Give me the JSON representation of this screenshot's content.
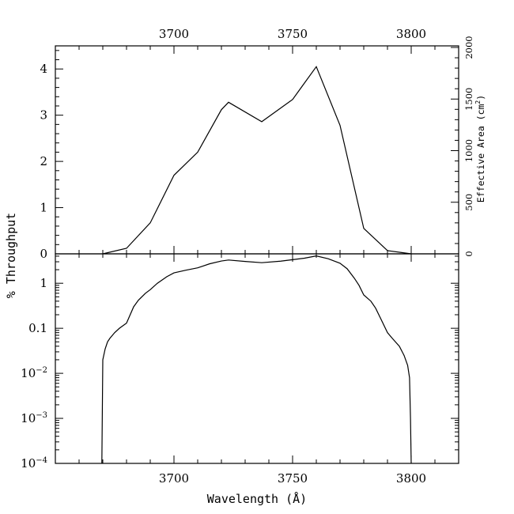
{
  "chart_data": [
    {
      "panel": "top",
      "type": "line",
      "ylabel": "% Throughput",
      "xlim": [
        3650,
        3820
      ],
      "ylim": [
        0,
        4.5
      ],
      "yticks": [
        0,
        1,
        2,
        3,
        4
      ],
      "x_top_ticks": [
        3700,
        3750,
        3800
      ],
      "right_axis": {
        "label": "Effective Area (cm²)",
        "label_main": "Effective Area (cm",
        "label_sup": "2",
        "label_end": ")",
        "ticks": [
          0,
          500,
          1000,
          1500,
          2000
        ]
      },
      "series": [
        {
          "x": [
            3670,
            3680,
            3690,
            3700,
            3710,
            3720,
            3723,
            3737,
            3750,
            3760,
            3770,
            3780,
            3790,
            3800
          ],
          "y": [
            0.0,
            0.12,
            0.67,
            1.7,
            2.2,
            3.12,
            3.28,
            2.86,
            3.34,
            4.05,
            2.78,
            0.55,
            0.07,
            0.0
          ]
        }
      ]
    },
    {
      "panel": "bottom",
      "type": "line",
      "yscale": "log",
      "xlabel": "Wavelength (Å)",
      "xlim": [
        3650,
        3820
      ],
      "ylim": [
        0.0001,
        4.5
      ],
      "xticks": [
        3700,
        3750,
        3800
      ],
      "ytick_labels": [
        {
          "value": 1,
          "base": "1",
          "exp": ""
        },
        {
          "value": 0.1,
          "base": "0.1",
          "exp": ""
        },
        {
          "value": 0.01,
          "base": "10",
          "exp": "−2"
        },
        {
          "value": 0.001,
          "base": "10",
          "exp": "−3"
        },
        {
          "value": 0.0001,
          "base": "10",
          "exp": "−4"
        }
      ],
      "series": [
        {
          "x": [
            3669.6,
            3670,
            3671,
            3672,
            3673,
            3675,
            3677,
            3680,
            3683,
            3685,
            3688,
            3690,
            3693,
            3697,
            3700,
            3705,
            3710,
            3715,
            3720,
            3723,
            3730,
            3737,
            3745,
            3750,
            3755,
            3760,
            3765,
            3770,
            3773,
            3776,
            3778,
            3780,
            3783,
            3785,
            3787,
            3790,
            3792,
            3795,
            3797,
            3798.5,
            3799.3,
            3799.7,
            3800
          ],
          "y": [
            0.0001,
            0.02,
            0.035,
            0.05,
            0.06,
            0.08,
            0.1,
            0.13,
            0.3,
            0.42,
            0.6,
            0.72,
            1.0,
            1.4,
            1.7,
            1.95,
            2.2,
            2.7,
            3.12,
            3.28,
            3.05,
            2.86,
            3.1,
            3.34,
            3.6,
            4.05,
            3.5,
            2.78,
            2.1,
            1.3,
            0.9,
            0.55,
            0.4,
            0.28,
            0.17,
            0.08,
            0.06,
            0.04,
            0.025,
            0.015,
            0.008,
            0.001,
            0.0001
          ]
        }
      ]
    }
  ]
}
